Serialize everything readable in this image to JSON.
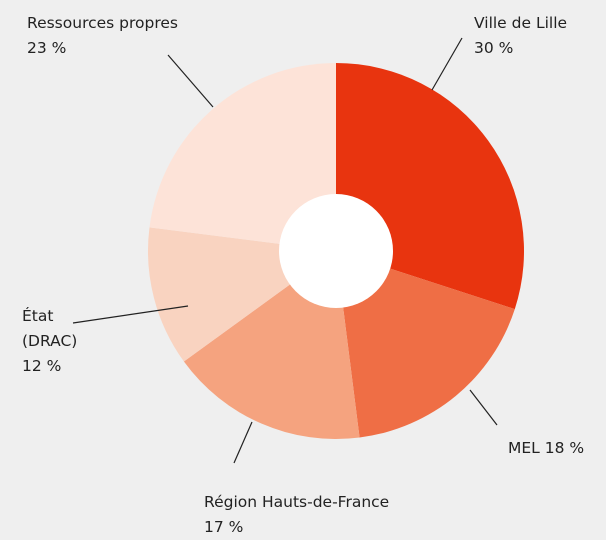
{
  "chart_data": {
    "type": "donut",
    "categories": [
      "Ville de Lille",
      "MEL",
      "Région Hauts-de-France",
      "État (DRAC)",
      "Ressources propres"
    ],
    "values": [
      30,
      18,
      17,
      12,
      23
    ],
    "value_labels": [
      "30 %",
      "18 %",
      "17 %",
      "12 %",
      "23 %"
    ],
    "colors": [
      "#e8340f",
      "#ef6e45",
      "#f5a37f",
      "#f9d3c0",
      "#fde3d8"
    ]
  }
}
